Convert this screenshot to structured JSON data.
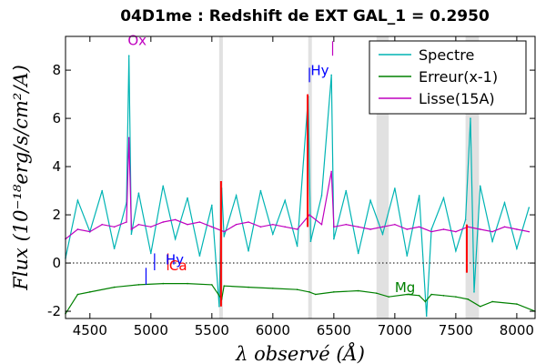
{
  "chart_data": {
    "type": "line",
    "title": "04D1me : Redshift de EXT GAL_1 = 0.2950",
    "xlabel": "λ observé (Å)",
    "ylabel": "Flux (10⁻¹⁸erg/s/cm²/A)",
    "xlim": [
      4300,
      8150
    ],
    "ylim": [
      -2.3,
      9.4
    ],
    "xticks": [
      4500,
      5000,
      5500,
      6000,
      6500,
      7000,
      7500,
      8000
    ],
    "yticks": [
      -2,
      0,
      2,
      4,
      6,
      8
    ],
    "zero_line": "dotted",
    "legend_position": "top-right",
    "series": [
      {
        "name": "Spectre",
        "color": "#00b4b4",
        "x": [
          4300,
          4400,
          4500,
          4600,
          4700,
          4800,
          4820,
          4840,
          4900,
          5000,
          5100,
          5200,
          5300,
          5400,
          5500,
          5560,
          5580,
          5600,
          5700,
          5800,
          5900,
          6000,
          6100,
          6200,
          6290,
          6310,
          6400,
          6480,
          6500,
          6600,
          6700,
          6800,
          6900,
          7000,
          7100,
          7200,
          7260,
          7300,
          7400,
          7500,
          7580,
          7620,
          7650,
          7700,
          7800,
          7900,
          8000,
          8100
        ],
        "values": [
          0.2,
          2.6,
          1.3,
          3.0,
          0.6,
          2.5,
          8.6,
          1.2,
          2.9,
          0.4,
          3.2,
          1.0,
          2.7,
          0.3,
          2.4,
          -1.8,
          3.1,
          1.1,
          2.8,
          0.5,
          3.0,
          1.2,
          2.6,
          0.7,
          6.9,
          0.9,
          2.8,
          7.8,
          1.0,
          3.0,
          0.4,
          2.6,
          1.2,
          3.1,
          0.3,
          2.8,
          -2.2,
          1.4,
          2.7,
          0.5,
          1.8,
          6.0,
          -1.2,
          3.2,
          0.9,
          2.5,
          0.6,
          2.3
        ]
      },
      {
        "name": "Erreur(x-1)",
        "color": "#008000",
        "x": [
          4300,
          4400,
          4500,
          4700,
          4900,
          5100,
          5300,
          5500,
          5580,
          5600,
          5800,
          6000,
          6200,
          6300,
          6350,
          6500,
          6700,
          6850,
          6950,
          7100,
          7200,
          7250,
          7300,
          7400,
          7500,
          7600,
          7700,
          7800,
          8000,
          8150
        ],
        "values": [
          -2.1,
          -1.3,
          -1.2,
          -1.0,
          -0.9,
          -0.85,
          -0.85,
          -0.9,
          -1.5,
          -0.95,
          -1.0,
          -1.05,
          -1.1,
          -1.2,
          -1.3,
          -1.2,
          -1.15,
          -1.25,
          -1.4,
          -1.3,
          -1.35,
          -1.6,
          -1.3,
          -1.35,
          -1.4,
          -1.5,
          -1.8,
          -1.6,
          -1.7,
          -2.0
        ]
      },
      {
        "name": "Lisse(15A)",
        "color": "#bf00bf",
        "x": [
          4300,
          4400,
          4500,
          4600,
          4700,
          4800,
          4820,
          4840,
          4900,
          5000,
          5100,
          5200,
          5300,
          5400,
          5500,
          5600,
          5700,
          5800,
          5900,
          6000,
          6100,
          6200,
          6300,
          6400,
          6480,
          6500,
          6600,
          6700,
          6800,
          6900,
          7000,
          7100,
          7200,
          7300,
          7400,
          7500,
          7600,
          7700,
          7800,
          7900,
          8000,
          8100
        ],
        "values": [
          1.0,
          1.4,
          1.3,
          1.6,
          1.5,
          1.7,
          5.2,
          1.4,
          1.6,
          1.5,
          1.7,
          1.8,
          1.6,
          1.7,
          1.5,
          1.3,
          1.6,
          1.7,
          1.5,
          1.6,
          1.5,
          1.4,
          2.0,
          1.6,
          3.8,
          1.5,
          1.6,
          1.5,
          1.4,
          1.5,
          1.6,
          1.4,
          1.5,
          1.3,
          1.4,
          1.3,
          1.5,
          1.4,
          1.3,
          1.5,
          1.4,
          1.3
        ]
      }
    ],
    "red_features": [
      {
        "x": 5575,
        "ymin": -1.8,
        "ymax": 3.4
      },
      {
        "x": 6285,
        "ymin": 1.5,
        "ymax": 7.0
      },
      {
        "x": 7590,
        "ymin": -0.4,
        "ymax": 1.6
      }
    ],
    "shaded_bands": [
      [
        5560,
        5590
      ],
      [
        6290,
        6320
      ],
      [
        6850,
        6950
      ],
      [
        7580,
        7690
      ]
    ],
    "line_markers": [
      {
        "x": 4960,
        "ymin": -0.9,
        "ymax": -0.2,
        "color": "#0000ff"
      },
      {
        "x": 5030,
        "ymin": -0.3,
        "ymax": 0.4,
        "color": "#0000ff"
      },
      {
        "x": 5140,
        "ymin": -0.3,
        "ymax": 0.4,
        "color": "#ff0000"
      },
      {
        "x": 6300,
        "ymin": 7.5,
        "ymax": 8.1,
        "color": "#0000ff"
      },
      {
        "x": 6490,
        "ymin": 8.6,
        "ymax": 9.2,
        "color": "#bf00bf"
      }
    ],
    "annotations": [
      {
        "text": "Ox",
        "x": 4810,
        "y": 9.05,
        "color": "#bf00bf"
      },
      {
        "text": "Hy",
        "x": 6310,
        "y": 7.8,
        "color": "#0000ff"
      },
      {
        "text": "Hy",
        "x": 5120,
        "y": -0.05,
        "color": "#0000ff"
      },
      {
        "text": "Ca",
        "x": 5150,
        "y": -0.3,
        "color": "#ff0000"
      },
      {
        "text": "Mg",
        "x": 7000,
        "y": -1.2,
        "color": "#008000"
      }
    ]
  }
}
